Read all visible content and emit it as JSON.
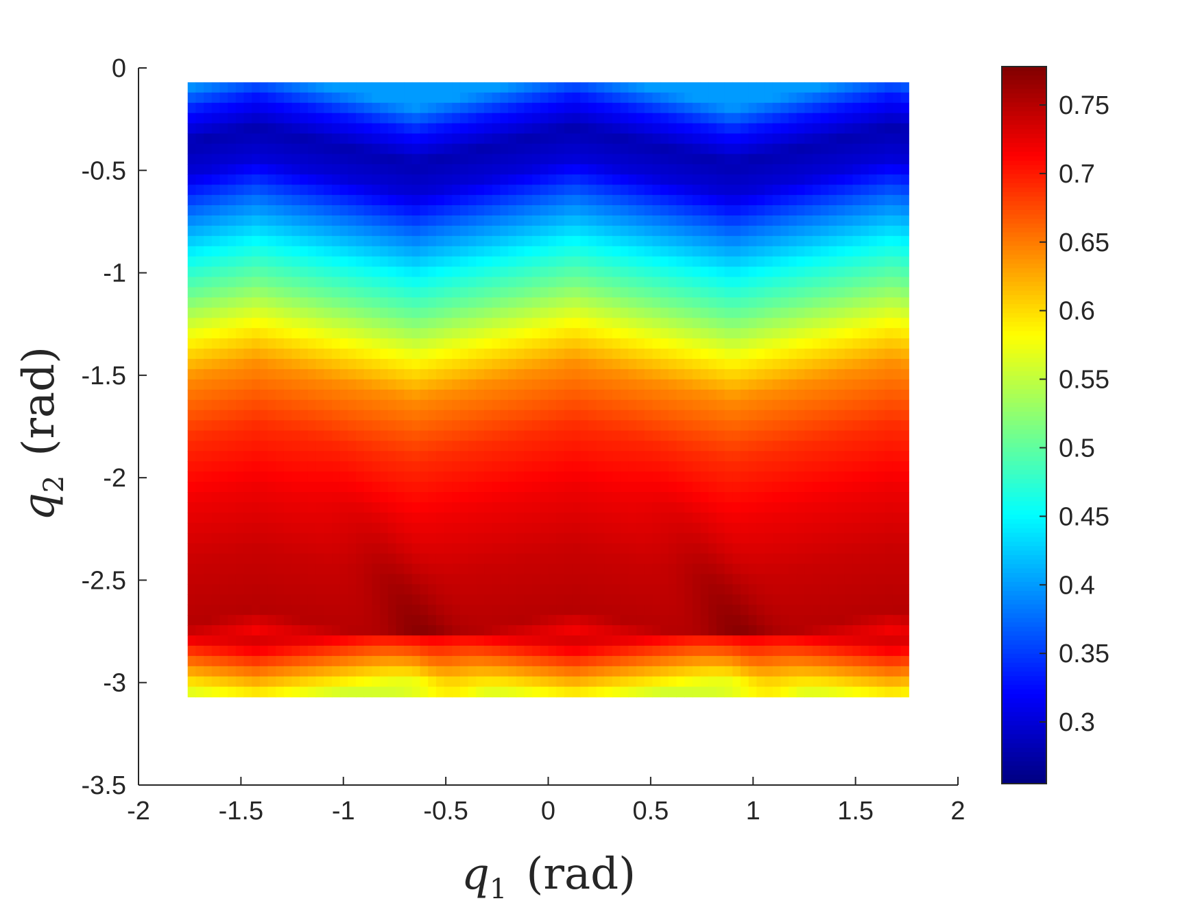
{
  "chart_data": {
    "type": "heatmap",
    "title": "",
    "xlabel": {
      "var": "q",
      "sub": "1",
      "unit": "(rad)"
    },
    "ylabel": {
      "var": "q",
      "sub": "2",
      "unit": "(rad)"
    },
    "xlim": [
      -2,
      2
    ],
    "ylim": [
      -3.5,
      0
    ],
    "xticks": [
      -2,
      -1.5,
      -1,
      -0.5,
      0,
      0.5,
      1,
      1.5,
      2
    ],
    "xtick_labels": [
      "-2",
      "-1.5",
      "-1",
      "-0.5",
      "0",
      "0.5",
      "1",
      "1.5",
      "2"
    ],
    "yticks": [
      0,
      -0.5,
      -1,
      -1.5,
      -2,
      -2.5,
      -3,
      -3.5
    ],
    "ytick_labels": [
      "0",
      "-0.5",
      "-1",
      "-1.5",
      "-2",
      "-2.5",
      "-3",
      "-3.5"
    ],
    "data_extent": {
      "x": [
        -1.76,
        1.76
      ],
      "y": [
        -3.07,
        -0.07
      ]
    },
    "grid": false,
    "colormap": "jet",
    "colorbar": {
      "range": [
        0.255,
        0.778
      ],
      "ticks": [
        0.3,
        0.35,
        0.4,
        0.45,
        0.5,
        0.55,
        0.6,
        0.65,
        0.7,
        0.75
      ],
      "tick_labels": [
        "0.3",
        "0.35",
        "0.4",
        "0.45",
        "0.5",
        "0.55",
        "0.6",
        "0.65",
        "0.7",
        "0.75"
      ],
      "placement": "right"
    },
    "value_profile_by_q2": [
      {
        "q2": -0.07,
        "value": 0.4
      },
      {
        "q2": -0.2,
        "value": 0.33
      },
      {
        "q2": -0.35,
        "value": 0.28
      },
      {
        "q2": -0.5,
        "value": 0.3
      },
      {
        "q2": -0.7,
        "value": 0.38
      },
      {
        "q2": -0.9,
        "value": 0.45
      },
      {
        "q2": -1.1,
        "value": 0.51
      },
      {
        "q2": -1.3,
        "value": 0.58
      },
      {
        "q2": -1.5,
        "value": 0.64
      },
      {
        "q2": -1.8,
        "value": 0.69
      },
      {
        "q2": -2.1,
        "value": 0.72
      },
      {
        "q2": -2.4,
        "value": 0.74
      },
      {
        "q2": -2.7,
        "value": 0.75
      },
      {
        "q2": -2.8,
        "value": 0.72
      },
      {
        "q2": -2.9,
        "value": 0.66
      },
      {
        "q2": -3.0,
        "value": 0.6
      },
      {
        "q2": -3.07,
        "value": 0.56
      }
    ],
    "periodic_ridges": [
      {
        "q1_peak": -0.65,
        "q2_peak": -2.7,
        "peak_value": 0.778
      },
      {
        "q1_peak": 0.9,
        "q2_peak": -2.7,
        "peak_value": 0.778
      }
    ]
  }
}
